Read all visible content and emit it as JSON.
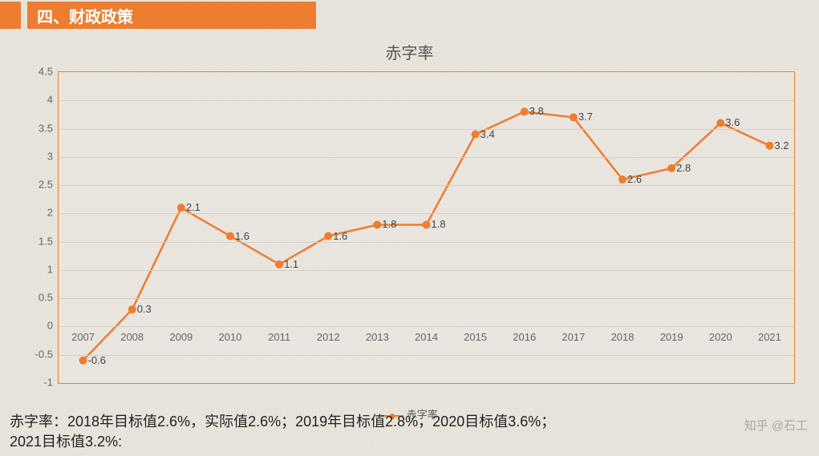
{
  "header": {
    "title": "四、财政政策"
  },
  "chart": {
    "type": "line",
    "title": "赤字率",
    "series_name": "赤字率",
    "line_color": "#ed7d31",
    "marker_color": "#ed7d31",
    "marker_size": 5,
    "line_width": 2.5,
    "border_color": "#ed7d31",
    "grid_color": "#d5d0c6",
    "background_color": "#e8e4dc",
    "title_fontsize": 20,
    "label_fontsize": 13,
    "ylim": [
      -1,
      4.5
    ],
    "ytick_step": 0.5,
    "yticks": [
      -1,
      -0.5,
      0,
      0.5,
      1,
      1.5,
      2,
      2.5,
      3,
      3.5,
      4,
      4.5
    ],
    "categories": [
      "2007",
      "2008",
      "2009",
      "2010",
      "2011",
      "2012",
      "2013",
      "2014",
      "2015",
      "2016",
      "2017",
      "2018",
      "2019",
      "2020",
      "2021"
    ],
    "values": [
      -0.6,
      0.3,
      2.1,
      1.6,
      1.1,
      1.6,
      1.8,
      1.8,
      3.4,
      3.8,
      3.7,
      2.6,
      2.8,
      3.6,
      3.2
    ],
    "x_label_baseline_value": 0
  },
  "caption": {
    "line1": "赤字率：2018年目标值2.6%，实际值2.6%；2019年目标值2.8%，2020目标值3.6%；",
    "line2": "2021目标值3.2%:"
  },
  "watermark": "知乎 @石工"
}
